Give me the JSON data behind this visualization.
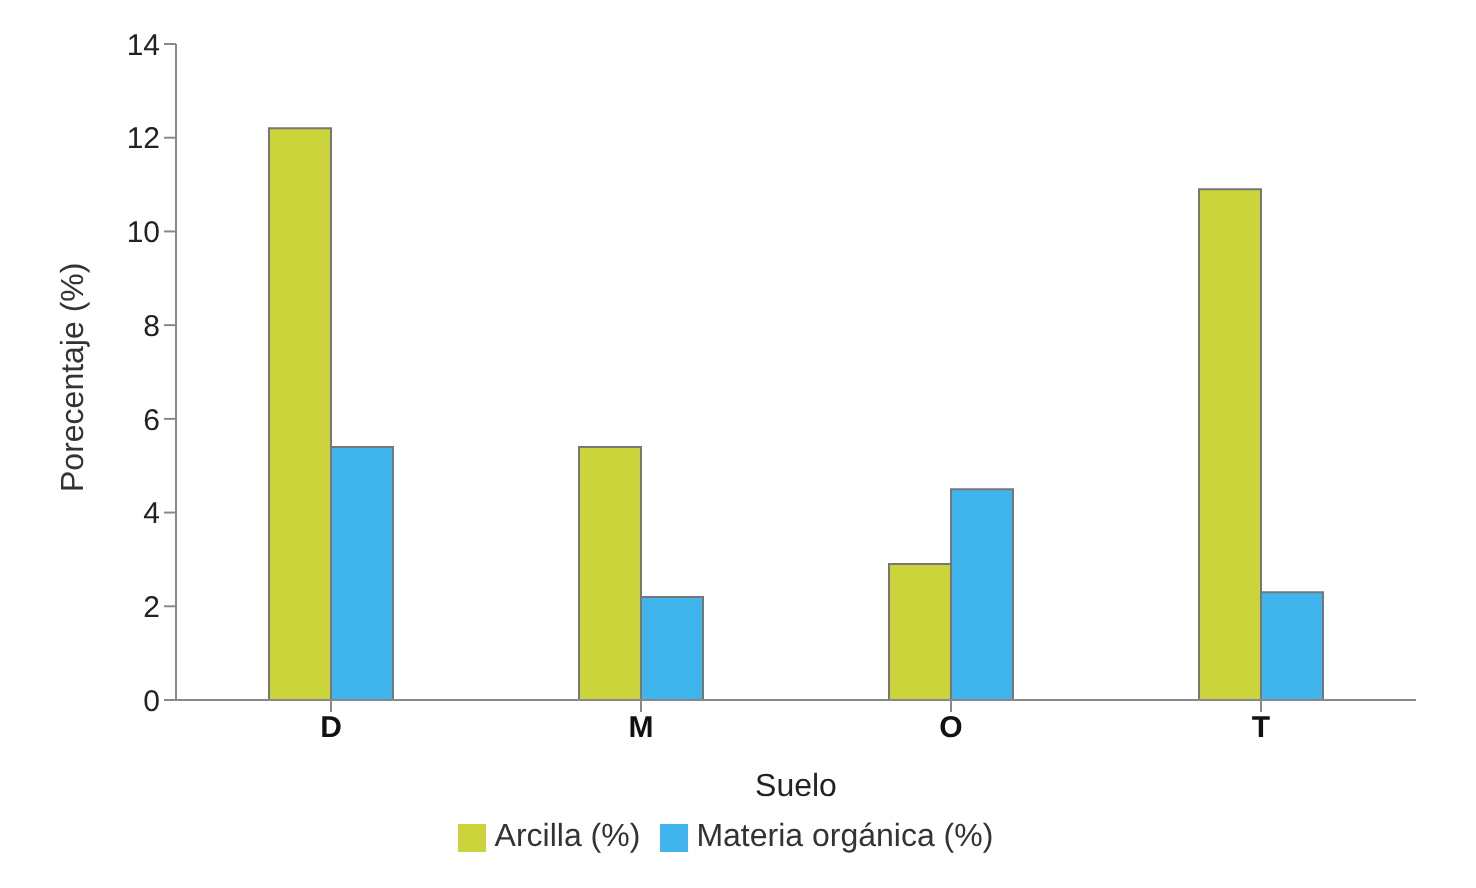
{
  "chart_data": {
    "type": "bar",
    "xlabel": "Suelo",
    "ylabel": "Porecentaje (%)",
    "categories": [
      "D",
      "M",
      "O",
      "T"
    ],
    "series": [
      {
        "name": "Arcilla (%)",
        "color": "#ccd43c",
        "values": [
          12.2,
          5.4,
          2.9,
          10.9
        ]
      },
      {
        "name": "Materia orgánica (%)",
        "color": "#40b4ec",
        "values": [
          5.4,
          2.2,
          4.5,
          2.3
        ]
      }
    ],
    "ylim": [
      0,
      14
    ],
    "yticks": [
      0,
      2,
      4,
      6,
      8,
      10,
      12,
      14
    ],
    "grid": false,
    "legend": "bottom"
  }
}
